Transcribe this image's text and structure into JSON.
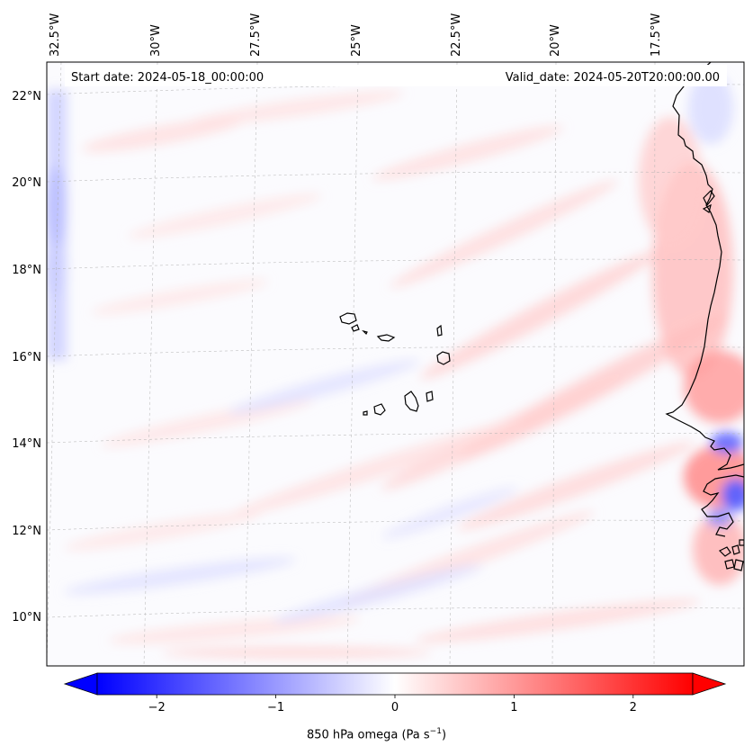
{
  "map": {
    "start_date": "Start date: 2024-05-18_00:00:00",
    "valid_date": "Valid_date: 2024-05-20T20:00:00.00",
    "lon_ticks": [
      "32.5°W",
      "30°W",
      "27.5°W",
      "25°W",
      "22.5°W",
      "20°W",
      "17.5°W"
    ],
    "lat_ticks": [
      "22°N",
      "20°N",
      "18°N",
      "16°N",
      "14°N",
      "12°N",
      "10°N"
    ],
    "colors": {
      "negative_max": "#0000ff",
      "neutral": "#ffffff",
      "positive_max": "#ff0000",
      "coastline": "#000000",
      "gridline": "#b0b0b0"
    }
  },
  "colorbar": {
    "min": -2.5,
    "max": 2.5,
    "tick_values": [
      -2,
      -1,
      0,
      1,
      2
    ],
    "tick_labels": [
      "−2",
      "−1",
      "0",
      "1",
      "2"
    ],
    "label_main": "850 hPa omega (Pa s",
    "label_sup": "−1",
    "label_end": ")"
  }
}
